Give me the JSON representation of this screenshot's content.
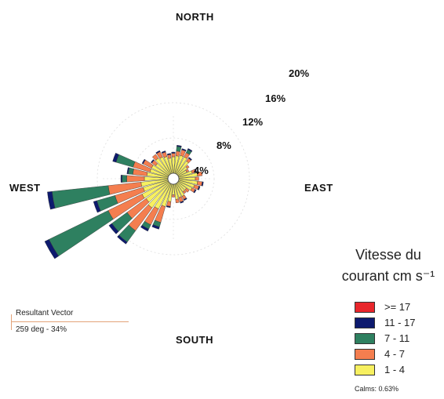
{
  "labels": {
    "north": "NORTH",
    "south": "SOUTH",
    "east": "EAST",
    "west": "WEST"
  },
  "legend": {
    "title_line1": "Vitesse du",
    "title_line2": "courant cm s⁻¹",
    "items": [
      {
        "label": ">= 17",
        "color": "#e8262b"
      },
      {
        "label": "11 - 17",
        "color": "#0d1a6e"
      },
      {
        "label": "7 - 11",
        "color": "#2e8060"
      },
      {
        "label": "4 - 7",
        "color": "#f47e4f"
      },
      {
        "label": "1 - 4",
        "color": "#f7f060"
      }
    ],
    "calms": "Calms: 0.63%"
  },
  "resultant": {
    "title": "Resultant Vector",
    "value": "259 deg - 34%"
  },
  "chart_data": {
    "type": "wind-rose",
    "ring_labels": [
      "4%",
      "8%",
      "12%",
      "16%",
      "20%"
    ],
    "ring_values": [
      4,
      8,
      12,
      16,
      20
    ],
    "speed_bins": [
      "1 - 4",
      "4 - 7",
      "7 - 11",
      "11 - 17",
      ">= 17"
    ],
    "sector_width_deg": 10,
    "sectors": [
      {
        "dir": 0,
        "segs": [
          1.4,
          0.3,
          0,
          0.1,
          0
        ]
      },
      {
        "dir": 10,
        "segs": [
          1.5,
          0.4,
          0.4,
          0.1,
          0
        ]
      },
      {
        "dir": 20,
        "segs": [
          1.6,
          0.5,
          0,
          0.1,
          0
        ]
      },
      {
        "dir": 30,
        "segs": [
          1.6,
          0.4,
          0.3,
          0.1,
          0
        ]
      },
      {
        "dir": 40,
        "segs": [
          1.4,
          0.3,
          0,
          0.1,
          0
        ]
      },
      {
        "dir": 50,
        "segs": [
          1.0,
          0.2,
          0,
          0,
          0
        ]
      },
      {
        "dir": 60,
        "segs": [
          0.8,
          0.2,
          0,
          0,
          0
        ]
      },
      {
        "dir": 70,
        "segs": [
          1.2,
          0.3,
          0,
          0.1,
          0
        ]
      },
      {
        "dir": 80,
        "segs": [
          1.6,
          0.4,
          0,
          0,
          0
        ]
      },
      {
        "dir": 90,
        "segs": [
          1.4,
          0.3,
          0,
          0,
          0
        ]
      },
      {
        "dir": 100,
        "segs": [
          1.6,
          0.4,
          0,
          0.1,
          0
        ]
      },
      {
        "dir": 110,
        "segs": [
          1.4,
          0.4,
          0,
          0.1,
          0
        ]
      },
      {
        "dir": 120,
        "segs": [
          1.3,
          0.3,
          0,
          0.1,
          0
        ]
      },
      {
        "dir": 130,
        "segs": [
          0.9,
          0.3,
          0,
          0,
          0
        ]
      },
      {
        "dir": 140,
        "segs": [
          0.9,
          0.2,
          0,
          0,
          0
        ]
      },
      {
        "dir": 150,
        "segs": [
          1.2,
          0.3,
          0,
          0.1,
          0
        ]
      },
      {
        "dir": 160,
        "segs": [
          1.2,
          0.4,
          0,
          0.1,
          0
        ]
      },
      {
        "dir": 170,
        "segs": [
          1.3,
          0.3,
          0,
          0,
          0
        ]
      },
      {
        "dir": 180,
        "segs": [
          0.9,
          0.2,
          0,
          0,
          0
        ]
      },
      {
        "dir": 190,
        "segs": [
          1.5,
          0.4,
          0,
          0.1,
          0
        ]
      },
      {
        "dir": 200,
        "segs": [
          2.0,
          1.4,
          0.4,
          0.2,
          0
        ]
      },
      {
        "dir": 210,
        "segs": [
          2.4,
          1.5,
          0.4,
          0.2,
          0
        ]
      },
      {
        "dir": 220,
        "segs": [
          2.6,
          2.4,
          1.2,
          0.2,
          0
        ]
      },
      {
        "dir": 230,
        "segs": [
          2.4,
          2.0,
          1.6,
          0.3,
          0
        ]
      },
      {
        "dir": 240,
        "segs": [
          2.5,
          3.2,
          5.6,
          0.4,
          0
        ]
      },
      {
        "dir": 250,
        "segs": [
          2.2,
          2.5,
          1.6,
          0.3,
          0
        ]
      },
      {
        "dir": 260,
        "segs": [
          2.3,
          2.8,
          4.8,
          0.4,
          0
        ]
      },
      {
        "dir": 270,
        "segs": [
          2.0,
          1.5,
          0.4,
          0.1,
          0
        ]
      },
      {
        "dir": 280,
        "segs": [
          1.8,
          1.2,
          0.4,
          0.1,
          0
        ]
      },
      {
        "dir": 290,
        "segs": [
          1.6,
          1.5,
          1.5,
          0.3,
          0
        ]
      },
      {
        "dir": 300,
        "segs": [
          1.6,
          0.8,
          0,
          0.1,
          0
        ]
      },
      {
        "dir": 310,
        "segs": [
          1.4,
          0.4,
          0,
          0.1,
          0
        ]
      },
      {
        "dir": 320,
        "segs": [
          1.7,
          0.4,
          0,
          0,
          0
        ]
      },
      {
        "dir": 330,
        "segs": [
          1.6,
          0.5,
          0,
          0.1,
          0
        ]
      },
      {
        "dir": 340,
        "segs": [
          1.5,
          0.4,
          0,
          0.1,
          0
        ]
      },
      {
        "dir": 350,
        "segs": [
          1.3,
          0.3,
          0,
          0.1,
          0
        ]
      }
    ]
  }
}
